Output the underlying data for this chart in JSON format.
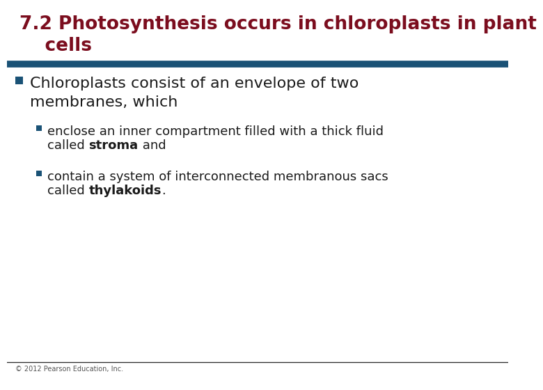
{
  "title_line1": "7.2 Photosynthesis occurs in chloroplasts in plant",
  "title_line2": "    cells",
  "title_color": "#7B0D1E",
  "title_fontsize": 19,
  "separator_color": "#1A5276",
  "bullet1_text": "Chloroplasts consist of an envelope of two\nmembranes, which",
  "bullet1_color": "#1a1a1a",
  "bullet1_fontsize": 16,
  "bullet1_marker_color": "#1A5276",
  "sub_bullet1_line1": "enclose an inner compartment filled with a thick fluid",
  "sub_bullet1_line2_pre": "called ",
  "sub_bullet1_bold": "stroma",
  "sub_bullet1_suf": " and",
  "sub_bullet2_line1": "contain a system of interconnected membranous sacs",
  "sub_bullet2_line2_pre": "called ",
  "sub_bullet2_bold": "thylakoids",
  "sub_bullet2_suf": ".",
  "sub_bullet_color": "#1a1a1a",
  "sub_bullet_fontsize": 13,
  "sub_bullet_marker_color": "#1A5276",
  "footer_text": "© 2012 Pearson Education, Inc.",
  "footer_color": "#555555",
  "footer_fontsize": 7,
  "bg_color": "#FFFFFF"
}
